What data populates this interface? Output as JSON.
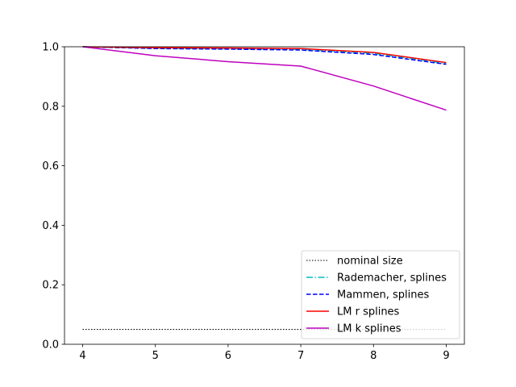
{
  "chart_data": {
    "type": "line",
    "title": "",
    "xlabel": "",
    "ylabel": "",
    "x": [
      4,
      5,
      6,
      7,
      8,
      9
    ],
    "xlim": [
      3.75,
      9.25
    ],
    "ylim": [
      0.0,
      1.0
    ],
    "xticks": [
      "4",
      "5",
      "6",
      "7",
      "8",
      "9"
    ],
    "yticks": [
      "0.0",
      "0.2",
      "0.4",
      "0.6",
      "0.8",
      "1.0"
    ],
    "grid": false,
    "legend_position": "lower-right",
    "series": [
      {
        "name": "nominal size",
        "color": "#000000",
        "style": "dotted",
        "values": [
          0.05,
          0.05,
          0.05,
          0.05,
          0.05,
          0.05
        ]
      },
      {
        "name": "Rademacher, splines",
        "color": "#00bfbf",
        "style": "dashdot",
        "values": [
          1.0,
          0.995,
          0.993,
          0.991,
          0.978,
          0.944
        ]
      },
      {
        "name": "Mammen, splines",
        "color": "#0000ff",
        "style": "dashed",
        "values": [
          1.0,
          0.994,
          0.992,
          0.989,
          0.974,
          0.941
        ]
      },
      {
        "name": "LM r splines",
        "color": "#ff0000",
        "style": "solid",
        "values": [
          1.0,
          0.997,
          0.996,
          0.994,
          0.981,
          0.947
        ]
      },
      {
        "name": "LM k splines",
        "color": "#bf00bf",
        "style": "solid",
        "values": [
          1.0,
          0.97,
          0.95,
          0.935,
          0.868,
          0.787
        ]
      }
    ]
  }
}
